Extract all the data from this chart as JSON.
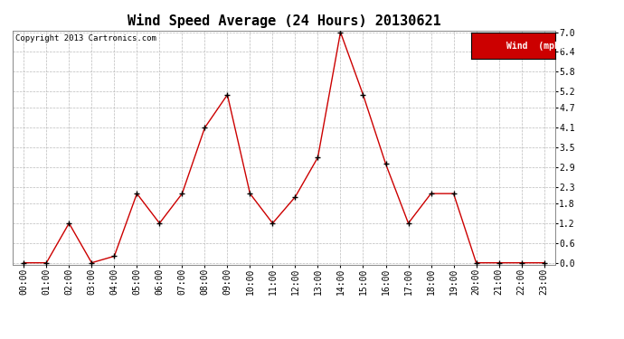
{
  "title": "Wind Speed Average (24 Hours) 20130621",
  "copyright_text": "Copyright 2013 Cartronics.com",
  "legend_label": "Wind  (mph)",
  "hours": [
    "00:00",
    "01:00",
    "02:00",
    "03:00",
    "04:00",
    "05:00",
    "06:00",
    "07:00",
    "08:00",
    "09:00",
    "10:00",
    "11:00",
    "12:00",
    "13:00",
    "14:00",
    "15:00",
    "16:00",
    "17:00",
    "18:00",
    "19:00",
    "20:00",
    "21:00",
    "22:00",
    "23:00"
  ],
  "values": [
    0.0,
    0.0,
    1.2,
    0.0,
    0.2,
    2.1,
    1.2,
    2.1,
    4.1,
    5.1,
    2.1,
    1.2,
    2.0,
    3.2,
    7.0,
    5.1,
    3.0,
    1.2,
    2.1,
    2.1,
    0.0,
    0.0,
    0.0,
    0.0
  ],
  "line_color": "#cc0000",
  "marker_color": "#000000",
  "grid_color": "#bbbbbb",
  "bg_color": "#ffffff",
  "yticks": [
    0.0,
    0.6,
    1.2,
    1.8,
    2.3,
    2.9,
    3.5,
    4.1,
    4.7,
    5.2,
    5.8,
    6.4,
    7.0
  ],
  "ylim": [
    0.0,
    7.0
  ],
  "title_fontsize": 11,
  "tick_fontsize": 7,
  "copyright_fontsize": 6.5,
  "legend_bg": "#cc0000",
  "legend_text_color": "#ffffff",
  "legend_fontsize": 7
}
